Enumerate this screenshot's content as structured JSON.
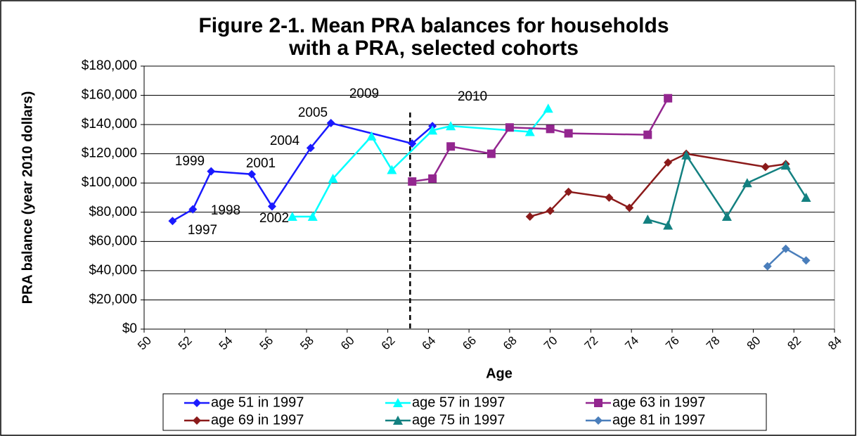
{
  "chart_data": {
    "type": "line",
    "title": [
      "Figure 2-1. Mean PRA balances for households",
      "with a PRA, selected cohorts"
    ],
    "x_label": "Age",
    "y_label": "PRA balance (year 2010 dollars)",
    "xlim": [
      50,
      84
    ],
    "xticks": [
      50,
      52,
      54,
      56,
      58,
      60,
      62,
      64,
      66,
      68,
      70,
      72,
      74,
      76,
      78,
      80,
      82,
      84
    ],
    "ylim": [
      0,
      180000
    ],
    "yticks": [
      {
        "value": 0,
        "label": "$0"
      },
      {
        "value": 20000,
        "label": "$20,000"
      },
      {
        "value": 40000,
        "label": "$40,000"
      },
      {
        "value": 60000,
        "label": "$60,000"
      },
      {
        "value": 80000,
        "label": "$80,000"
      },
      {
        "value": 100000,
        "label": "$100,000"
      },
      {
        "value": 120000,
        "label": "$120,000"
      },
      {
        "value": 140000,
        "label": "$140,000"
      },
      {
        "value": 160000,
        "label": "$160,000"
      },
      {
        "value": 180000,
        "label": "$180,000"
      }
    ],
    "grid": true,
    "reference_line_x": 63.1,
    "annotations": [
      "1999",
      "2001",
      "2004",
      "2005",
      "1998",
      "1997",
      "2002",
      "2009",
      "2010"
    ],
    "series": [
      {
        "name": "age 51 in 1997",
        "color": "#1a1aff",
        "marker": "diamond",
        "x": [
          51.4,
          52.4,
          53.3,
          55.3,
          56.3,
          58.2,
          59.2,
          63.2,
          64.2
        ],
        "values": [
          74000,
          82000,
          108000,
          106000,
          84000,
          124000,
          141000,
          127000,
          139000
        ]
      },
      {
        "name": "age 57 in 1997",
        "color": "#00ffff",
        "marker": "triangle",
        "x": [
          57.3,
          58.3,
          59.3,
          61.2,
          62.2,
          64.2,
          65.1,
          69.0,
          69.9
        ],
        "values": [
          77000,
          77000,
          103000,
          132000,
          109000,
          136000,
          139000,
          135000,
          151000
        ]
      },
      {
        "name": "age 63 in 1997",
        "color": "#93268f",
        "marker": "square",
        "x": [
          63.2,
          64.2,
          65.1,
          67.1,
          68.0,
          70.0,
          70.9,
          74.8,
          75.8
        ],
        "values": [
          101000,
          103000,
          125000,
          120000,
          138000,
          137000,
          134000,
          133000,
          158000
        ]
      },
      {
        "name": "age 69 in 1997",
        "color": "#8b1a1a",
        "marker": "diamond",
        "x": [
          69.0,
          70.0,
          70.9,
          72.9,
          73.9,
          75.8,
          76.7,
          80.6,
          81.6
        ],
        "values": [
          77000,
          81000,
          94000,
          90000,
          83000,
          114000,
          120000,
          111000,
          113000
        ]
      },
      {
        "name": "age 75 in 1997",
        "color": "#138080",
        "marker": "triangle",
        "x": [
          74.8,
          75.8,
          76.7,
          78.7,
          79.7,
          81.6,
          82.6
        ],
        "values": [
          75000,
          71000,
          119000,
          77000,
          100000,
          112000,
          90000
        ]
      },
      {
        "name": "age 81 in 1997",
        "color": "#4a7ebb",
        "marker": "diamond",
        "x": [
          80.7,
          81.6,
          82.6
        ],
        "values": [
          43000,
          55000,
          47000
        ]
      }
    ]
  }
}
